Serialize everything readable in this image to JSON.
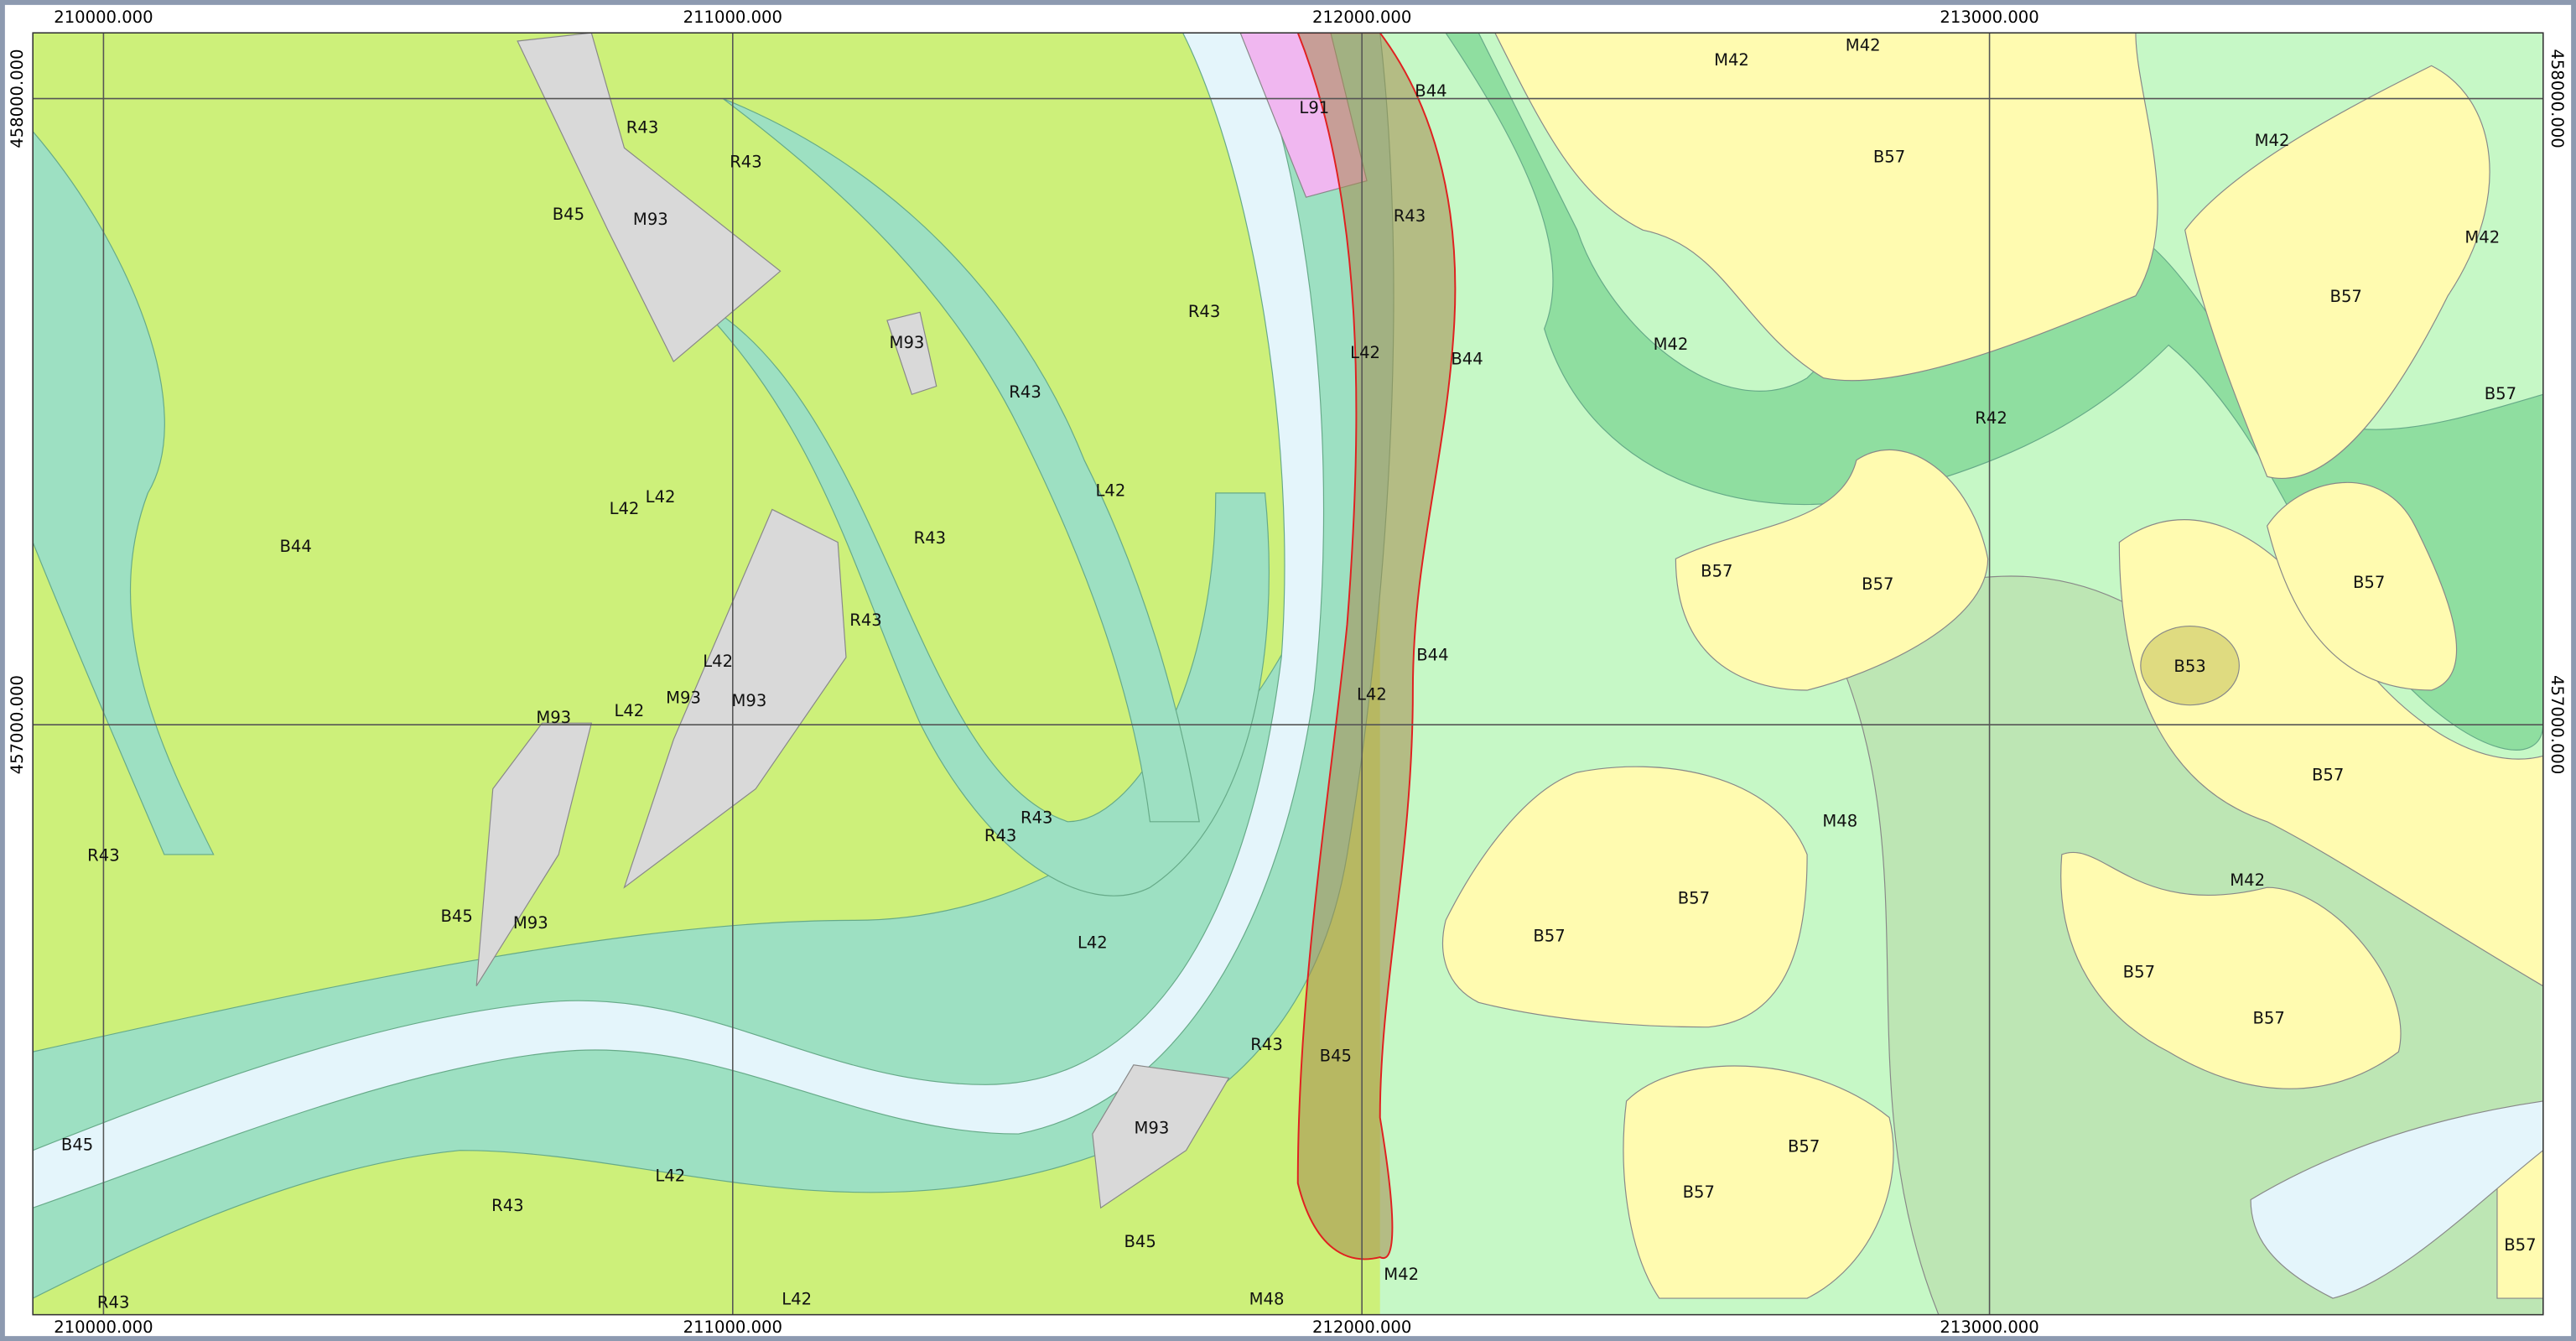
{
  "map": {
    "grid_labels": {
      "top": [
        "210000.000",
        "211000.000",
        "212000.000",
        "213000.000"
      ],
      "bottom": [
        "210000.000",
        "211000.000",
        "212000.000",
        "213000.000"
      ],
      "left": [
        "458000.000",
        "457000.000"
      ],
      "right": [
        "458000.000",
        "457000.000"
      ]
    },
    "unit_labels": [
      "L91",
      "B44",
      "R43",
      "L42",
      "B44",
      "B44",
      "L42",
      "B45",
      "M42",
      "M48",
      "M42",
      "M42",
      "B57",
      "M42",
      "M42",
      "B57",
      "M42",
      "R42",
      "B57",
      "B57",
      "B57",
      "B57",
      "B53",
      "B57",
      "M48",
      "B57",
      "B57",
      "M42",
      "B57",
      "B57",
      "B57",
      "B57",
      "B57",
      "R43",
      "R43",
      "B45",
      "M93",
      "M93",
      "R43",
      "R43",
      "L42",
      "R43",
      "L42",
      "L42",
      "B44",
      "R43",
      "L42",
      "M93",
      "M93",
      "M93",
      "L42",
      "R43",
      "R43",
      "L42",
      "B45",
      "M93",
      "R43",
      "R43",
      "M93",
      "B45",
      "L42",
      "R43",
      "B45",
      "R43",
      "L42"
    ]
  }
}
